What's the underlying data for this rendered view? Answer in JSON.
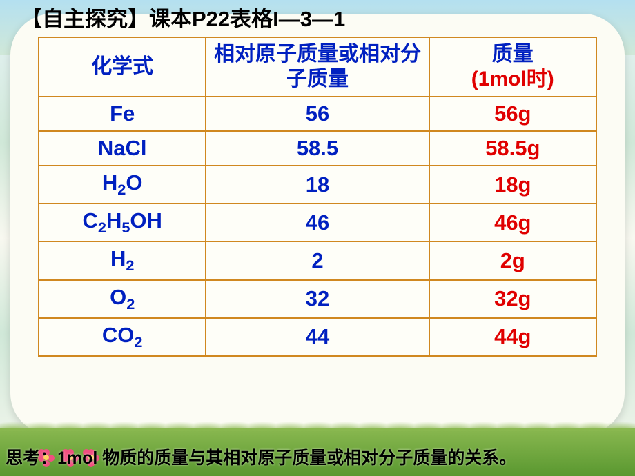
{
  "title": "【自主探究】课本P22表格I—3—1",
  "table": {
    "border_color": "#d08820",
    "header_color": "#0020c0",
    "header_red_color": "#e00000",
    "formula_color": "#0020c0",
    "value_color": "#0020c0",
    "mass_color": "#e00000",
    "background_color": "#fefef8",
    "headers": {
      "col1": "化学式",
      "col2": "相对原子质量或相对分子质量",
      "col3_line1": "质量",
      "col3_line2": "(1mol时)"
    },
    "rows": [
      {
        "formula_html": "Fe",
        "value": "56",
        "mass": "56g"
      },
      {
        "formula_html": "NaCl",
        "value": "58.5",
        "mass": "58.5g"
      },
      {
        "formula_html": "H<sub>2</sub>O",
        "value": "18",
        "mass": "18g"
      },
      {
        "formula_html": "C<sub>2</sub>H<sub>5</sub>OH",
        "value": "46",
        "mass": "46g"
      },
      {
        "formula_html": "H<sub>2</sub>",
        "value": "2",
        "mass": "2g"
      },
      {
        "formula_html": "O<sub>2</sub>",
        "value": "32",
        "mass": "32g"
      },
      {
        "formula_html": "CO<sub>2</sub>",
        "value": "44",
        "mass": "44g"
      }
    ]
  },
  "footer": "思考：1mol 物质的质量与其相对原子质量或相对分子质量的关系。",
  "background": {
    "sky_color": "#b4e0f0",
    "pillow_color": "#fcfcf4",
    "grass_color": "#5a9830",
    "flower_petal_color": "#f05080",
    "flower_center_color": "#ffd060"
  }
}
